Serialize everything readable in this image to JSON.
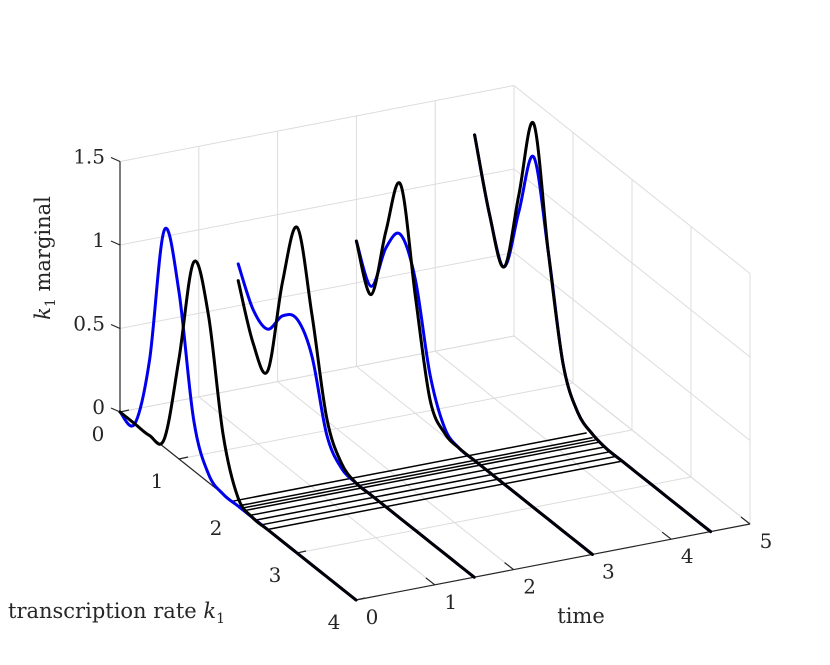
{
  "chart_data": {
    "type": "line",
    "subtype": "3d-waterfall",
    "xlabel": "time",
    "ylabel_prefix": "transcription rate ",
    "ylabel_var": "k",
    "ylabel_sub": "1",
    "zlabel_var": "k",
    "zlabel_sub": "1",
    "zlabel_suffix": " marginal",
    "xlim": [
      0,
      5
    ],
    "ylim": [
      0,
      4
    ],
    "zlim": [
      0,
      1.5
    ],
    "x_ticks": [
      "0",
      "1",
      "2",
      "3",
      "4",
      "5"
    ],
    "y_ticks": [
      "0",
      "1",
      "2",
      "3",
      "4"
    ],
    "z_ticks": [
      "0",
      "0.5",
      "1",
      "1.5"
    ],
    "grid": true,
    "series_colors": {
      "blue": "#0000ee",
      "black": "#000000"
    },
    "k_grid": [
      0,
      0.25,
      0.5,
      0.75,
      1,
      1.25,
      1.5,
      1.75,
      2,
      2.25,
      2.5,
      2.75,
      3,
      3.25,
      3.5,
      3.75,
      4
    ],
    "slices": [
      {
        "time": 0,
        "blue": [
          0.0,
          0.0,
          0.45,
          1.3,
          1.0,
          0.3,
          0.05,
          0.0,
          0.0,
          0.0,
          0.0,
          0.0,
          0.0,
          0.0,
          0.0,
          0.0,
          0.0
        ],
        "black": [
          0.0,
          0.0,
          0.0,
          0.05,
          0.6,
          1.25,
          1.0,
          0.35,
          0.05,
          0.0,
          0.0,
          0.0,
          0.0,
          0.0,
          0.0,
          0.0,
          0.0
        ]
      },
      {
        "time": 1.5,
        "blue": [
          0.75,
          0.55,
          0.5,
          0.65,
          0.7,
          0.55,
          0.15,
          0.02,
          0.0,
          0.0,
          0.0,
          0.0,
          0.0,
          0.0,
          0.0,
          0.0,
          0.0
        ],
        "black": [
          0.65,
          0.35,
          0.25,
          0.85,
          1.25,
          0.8,
          0.25,
          0.05,
          0.0,
          0.0,
          0.0,
          0.0,
          0.0,
          0.0,
          0.0,
          0.0,
          0.0
        ]
      },
      {
        "time": 3,
        "blue": [
          0.75,
          0.55,
          0.85,
          1.0,
          0.8,
          0.3,
          0.05,
          0.0,
          0.0,
          0.0,
          0.0,
          0.0,
          0.0,
          0.0,
          0.0,
          0.0,
          0.0
        ],
        "black": [
          0.75,
          0.5,
          0.95,
          1.3,
          0.7,
          0.15,
          0.02,
          0.0,
          0.0,
          0.0,
          0.0,
          0.0,
          0.0,
          0.0,
          0.0,
          0.0,
          0.0
        ]
      },
      {
        "time": 4.5,
        "blue": [
          1.25,
          0.85,
          0.6,
          1.0,
          1.4,
          0.9,
          0.3,
          0.08,
          0.02,
          0.0,
          0.0,
          0.0,
          0.0,
          0.0,
          0.0,
          0.0,
          0.0
        ],
        "black": [
          1.25,
          0.85,
          0.6,
          1.1,
          1.6,
          0.9,
          0.3,
          0.08,
          0.02,
          0.0,
          0.0,
          0.0,
          0.0,
          0.0,
          0.0,
          0.0,
          0.0
        ]
      }
    ],
    "baseline_samples": {
      "time_range": [
        0,
        4.5
      ],
      "k_values": [
        1.9,
        2.0,
        2.05,
        2.1,
        2.2,
        2.3,
        2.4,
        2.5
      ]
    }
  }
}
